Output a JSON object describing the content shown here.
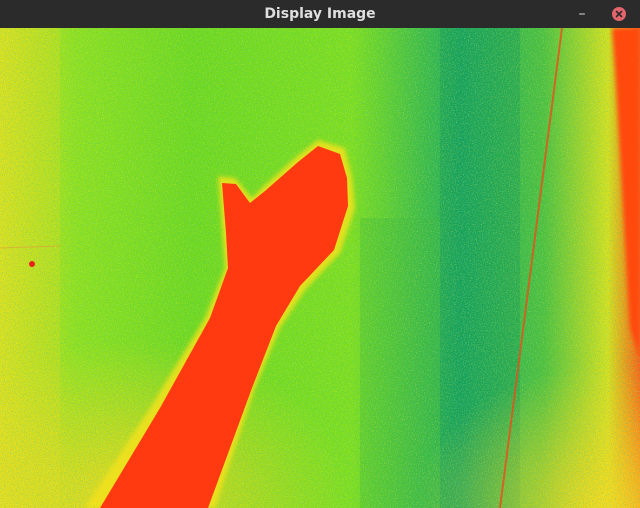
{
  "window": {
    "title": "Display Image",
    "minimize_icon": "minimize-icon",
    "close_icon": "close-icon",
    "close_color": "#e2646d"
  },
  "image": {
    "description_colors": {
      "near": "#ff3a10",
      "mid": "#9be21a",
      "far": "#0a9a5a",
      "edge": "#f7d21a"
    }
  }
}
